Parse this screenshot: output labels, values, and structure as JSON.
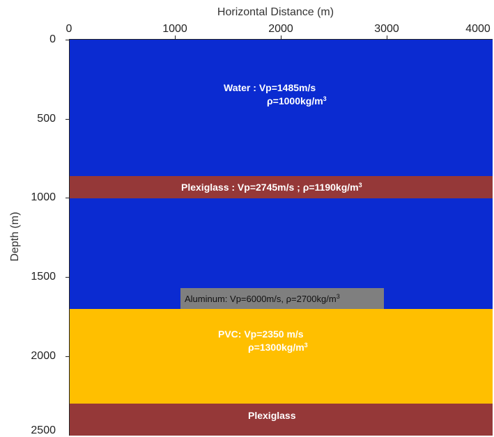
{
  "chart": {
    "xlabel": "Horizontal Distance (m)",
    "ylabel": "Depth (m)",
    "xlim": [
      0,
      4000
    ],
    "ylim": [
      0,
      2500
    ],
    "xticks": [
      "0",
      "1000",
      "2000",
      "3000",
      "4000"
    ],
    "yticks": [
      "0",
      "500",
      "1000",
      "1500",
      "2000",
      "2500"
    ]
  },
  "layers": [
    {
      "id": "water-top",
      "from_depth": 0,
      "to_depth": 860,
      "color": "#0b2bd1"
    },
    {
      "id": "plexiglass-1",
      "from_depth": 860,
      "to_depth": 1000,
      "color": "#953838"
    },
    {
      "id": "water-bottom",
      "from_depth": 1000,
      "to_depth": 1700,
      "color": "#0b2bd1"
    },
    {
      "id": "aluminum",
      "from_depth": 1570,
      "to_depth": 1700,
      "from_x": 1050,
      "to_x": 2970,
      "color": "#7f7f7f"
    },
    {
      "id": "pvc",
      "from_depth": 1700,
      "to_depth": 2300,
      "color": "#ffbf00"
    },
    {
      "id": "plexiglass-2",
      "from_depth": 2300,
      "to_depth": 2500,
      "color": "#953838"
    }
  ],
  "labels": {
    "water_line1": "Water : Vp=1485m/s",
    "water_line2": "ρ=1000kg/m",
    "water_sup": "3",
    "plexiglass1": "Plexiglass : Vp=2745m/s ; ρ=1190kg/m",
    "plexiglass1_sup": "3",
    "aluminum": "Aluminum: Vp=6000m/s, ρ=2700kg/m",
    "aluminum_sup": "3",
    "pvc_line1": "PVC: Vp=2350 m/s",
    "pvc_line2": "ρ=1300kg/m",
    "pvc_sup": "3",
    "plexiglass2": "Plexiglass"
  }
}
